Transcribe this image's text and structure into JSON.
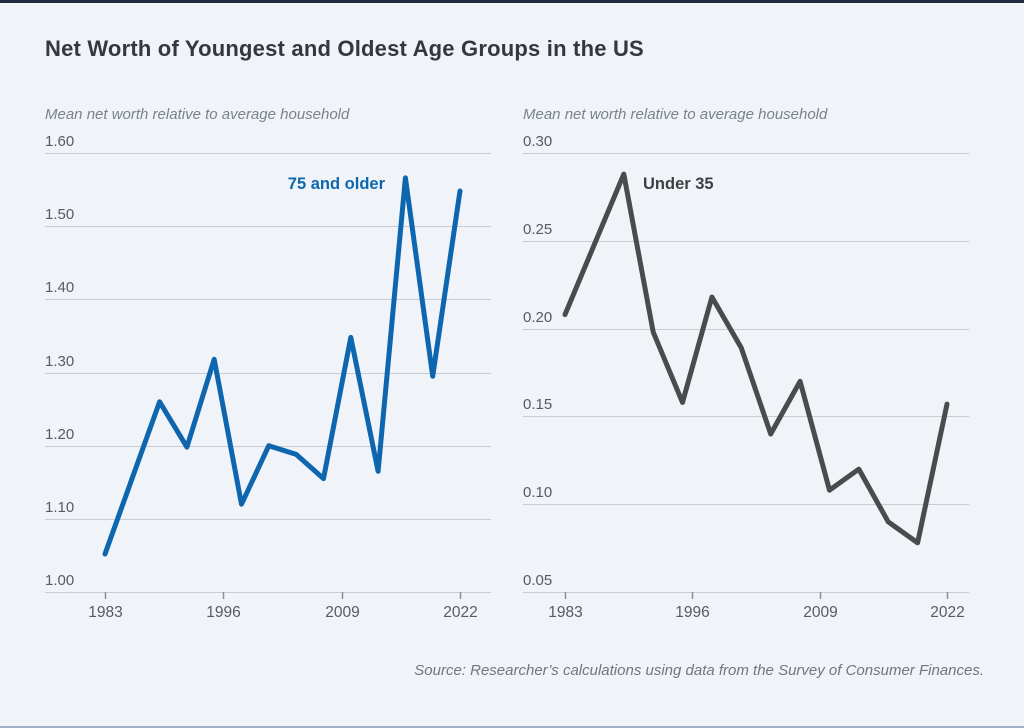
{
  "page": {
    "title": "Net Worth of Youngest and Oldest Age Groups in the US",
    "source_note": "Source: Researcher’s calculations using data from the Survey of Consumer Finances.",
    "colors": {
      "background": "#f0f4f9",
      "grid": "#c8cdd4",
      "tick_label": "#565b62",
      "tick_mark": "#8a9098",
      "accent_blue": "#0e67ae",
      "dark_series": "#4a4b4d"
    }
  },
  "chart_data": [
    {
      "type": "line",
      "subtitle": "Mean net worth relative to average household",
      "x": [
        1983,
        1986,
        1989,
        1992,
        1995,
        1998,
        2001,
        2004,
        2007,
        2010,
        2013,
        2016,
        2019,
        2022
      ],
      "series": [
        {
          "name": "75 and older",
          "values": [
            1.052,
            1.156,
            1.26,
            1.198,
            1.318,
            1.12,
            1.2,
            1.188,
            1.155,
            1.348,
            1.165,
            1.566,
            1.295,
            1.548
          ]
        }
      ],
      "ylim": [
        1.0,
        1.6
      ],
      "ytick_values": [
        1.6,
        1.5,
        1.4,
        1.3,
        1.2,
        1.1,
        1.0
      ],
      "ytick_labels": [
        "1.60",
        "1.50",
        "1.40",
        "1.30",
        "1.20",
        "1.10",
        "1.00"
      ],
      "xtick_values": [
        1983,
        1996,
        2009,
        2022
      ],
      "xtick_labels": [
        "1983",
        "1996",
        "2009",
        "2022"
      ],
      "color": "#0e67ae",
      "label_color": "#0e67ae",
      "grid": true,
      "legend_position": "inside-top-right"
    },
    {
      "type": "line",
      "subtitle": "Mean net worth relative to average household",
      "x": [
        1983,
        1986,
        1989,
        1992,
        1995,
        1998,
        2001,
        2004,
        2007,
        2010,
        2013,
        2016,
        2019,
        2022
      ],
      "series": [
        {
          "name": "Under 35",
          "values": [
            0.208,
            0.248,
            0.288,
            0.198,
            0.158,
            0.218,
            0.189,
            0.14,
            0.17,
            0.108,
            0.12,
            0.09,
            0.078,
            0.157
          ]
        }
      ],
      "ylim": [
        0.05,
        0.3
      ],
      "ytick_values": [
        0.3,
        0.25,
        0.2,
        0.15,
        0.1,
        0.05
      ],
      "ytick_labels": [
        "0.30",
        "0.25",
        "0.20",
        "0.15",
        "0.10",
        "0.05"
      ],
      "xtick_values": [
        1983,
        1996,
        2009,
        2022
      ],
      "xtick_labels": [
        "1983",
        "1996",
        "2009",
        "2022"
      ],
      "color": "#4a4b4d",
      "label_color": "#3e4144",
      "grid": true,
      "legend_position": "inside-top-left"
    }
  ]
}
